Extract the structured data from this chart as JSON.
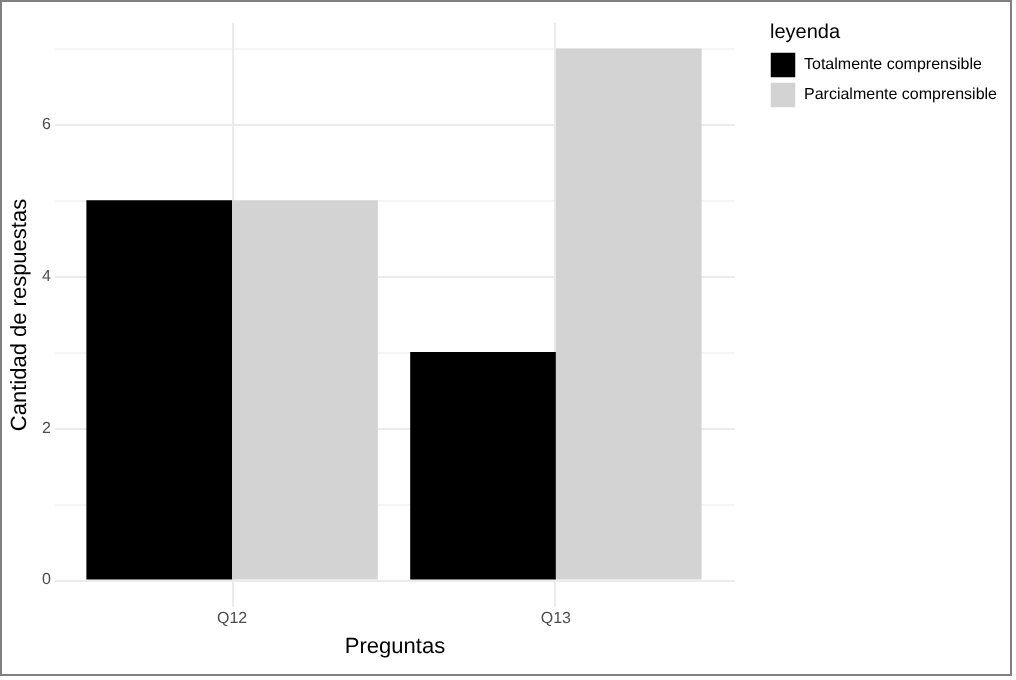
{
  "chart_data": {
    "type": "bar",
    "xlabel": "Preguntas",
    "ylabel": "Cantidad de respuestas",
    "legend_title": "leyenda",
    "categories": [
      "Q12",
      "Q13"
    ],
    "series": [
      {
        "name": "Totalmente comprensible",
        "color": "#000000",
        "values": [
          5,
          3
        ]
      },
      {
        "name": "Parcialmente comprensible",
        "color": "#d3d3d3",
        "values": [
          5,
          7
        ]
      }
    ],
    "ylim": [
      -0.35,
      7.35
    ],
    "yticks": [
      0,
      {
        "value": 1,
        "label": null
      },
      2,
      {
        "value": 3,
        "label": null
      },
      4,
      {
        "value": 5,
        "label": null
      },
      6,
      {
        "value": 7,
        "label": null
      }
    ],
    "grid": true,
    "legend": "right"
  }
}
